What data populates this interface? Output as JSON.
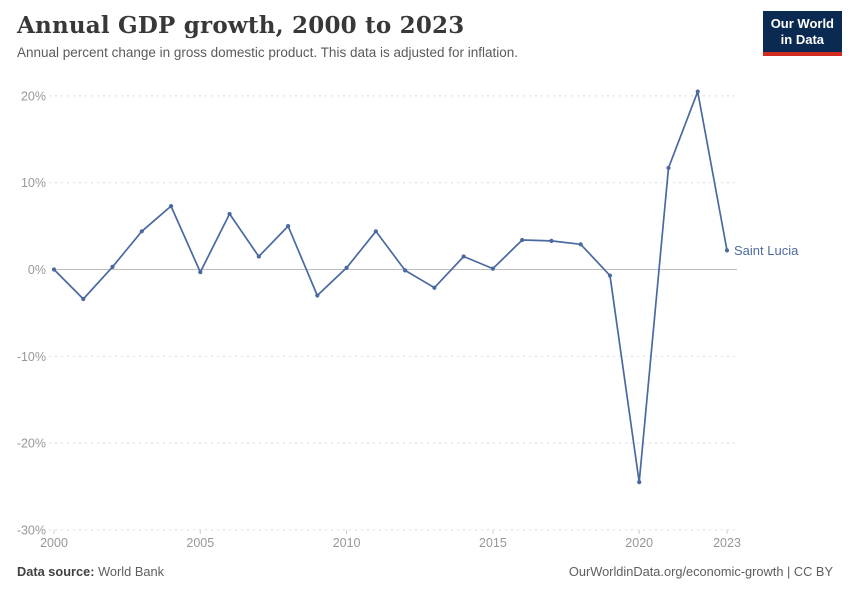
{
  "header": {
    "title": "Annual GDP growth, 2000 to 2023",
    "subtitle": "Annual percent change in gross domestic product. This data is adjusted for inflation.",
    "logo": {
      "line1": "Our World",
      "line2": "in Data",
      "bg_color": "#0b2a51",
      "bar_color": "#d42b21"
    }
  },
  "footer": {
    "source_label": "Data source:",
    "source_value": " World Bank",
    "credit_link": "OurWorldinData.org/economic-growth",
    "credit_license": " | CC BY"
  },
  "chart_data": {
    "type": "line",
    "title": "Annual GDP growth, 2000 to 2023",
    "subtitle": "Annual percent change in gross domestic product. This data is adjusted for inflation.",
    "series": [
      {
        "name": "Saint Lucia",
        "x": [
          2000,
          2001,
          2002,
          2003,
          2004,
          2005,
          2006,
          2007,
          2008,
          2009,
          2010,
          2011,
          2012,
          2013,
          2014,
          2015,
          2016,
          2017,
          2018,
          2019,
          2020,
          2021,
          2022,
          2023
        ],
        "values": [
          0.0,
          -3.4,
          0.3,
          4.4,
          7.3,
          -0.3,
          6.4,
          1.5,
          5.0,
          -3.0,
          0.2,
          4.4,
          -0.1,
          -2.1,
          1.5,
          0.1,
          3.4,
          3.3,
          2.9,
          -0.7,
          -24.5,
          11.7,
          20.5,
          2.2
        ]
      }
    ],
    "xlabel": "",
    "ylabel": "",
    "ylim": [
      -30,
      22
    ],
    "yticks": [
      20,
      10,
      0,
      -10,
      -20,
      -30
    ],
    "ytick_suffix": "%",
    "xticks": [
      2000,
      2005,
      2010,
      2015,
      2020,
      2023
    ],
    "grid": "horizontal-dashed, solid zero line",
    "legend_position": "end-of-line label",
    "line_color": "#4a69a0",
    "label_color": "#4d6b9e",
    "grid_color": "#d9d9d9",
    "zero_line_color": "#bdbdbd",
    "axis_text_color": "#989898",
    "tick_color": "#cccccc"
  }
}
